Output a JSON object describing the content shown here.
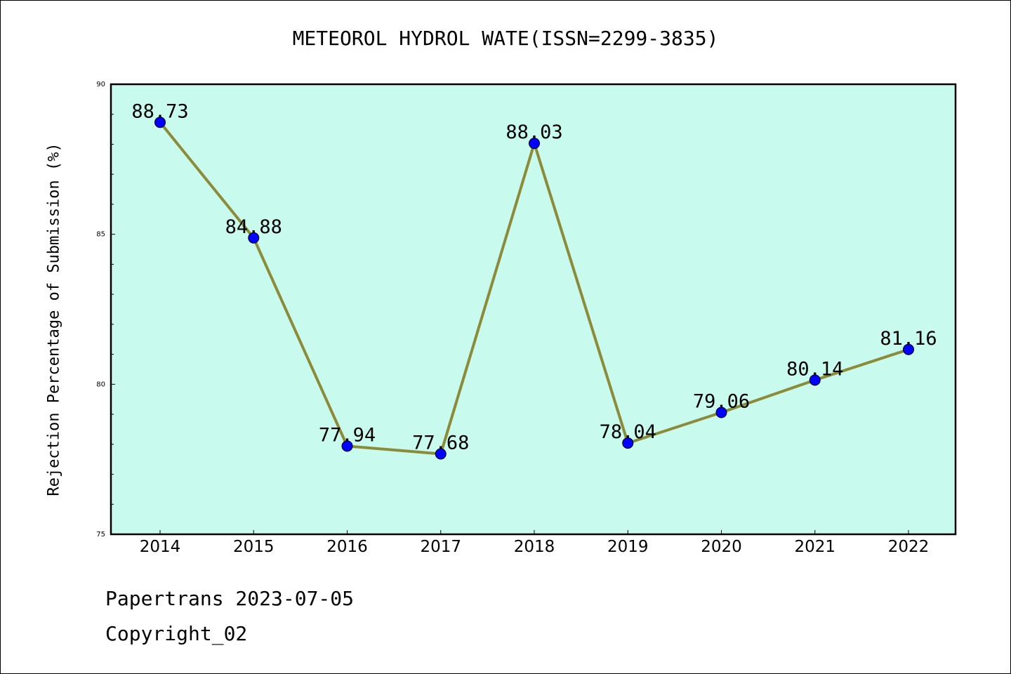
{
  "title": "METEOROL HYDROL WATE(ISSN=2299-3835)",
  "footer": {
    "line1": "Papertrans 2023-07-05",
    "line2": "Copyright_02"
  },
  "colors": {
    "plot_background": "#c8fbee",
    "line": "#8b8b3a",
    "marker": "#0000ff"
  },
  "chart_data": {
    "type": "line",
    "title": "METEOROL HYDROL WATE(ISSN=2299-3835)",
    "xlabel": "",
    "ylabel": "Rejection Percentage of Submission (%)",
    "categories": [
      "2014",
      "2015",
      "2016",
      "2017",
      "2018",
      "2019",
      "2020",
      "2021",
      "2022"
    ],
    "values": [
      88.73,
      84.88,
      77.94,
      77.68,
      88.03,
      78.04,
      79.06,
      80.14,
      81.16
    ],
    "data_labels": [
      "88.73",
      "84.88",
      "77.94",
      "77.68",
      "88.03",
      "78.04",
      "79.06",
      "80.14",
      "81.16"
    ],
    "ylim": [
      75,
      90
    ],
    "yticks": [
      75,
      80,
      85,
      90
    ],
    "grid": false,
    "legend": "none"
  }
}
